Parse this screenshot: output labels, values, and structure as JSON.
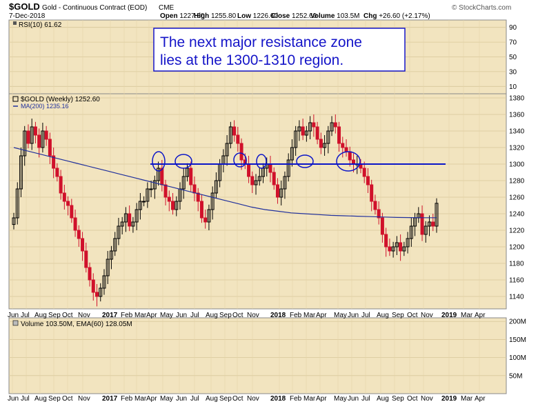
{
  "header": {
    "symbol": "$GOLD",
    "description": "Gold - Continuous Contract (EOD)",
    "exchange": "CME",
    "date": "7-Dec-2018",
    "watermark": "© StockCharts.com",
    "ohlc": [
      {
        "label": "Open",
        "value": "1227.80"
      },
      {
        "label": "High",
        "value": "1255.80"
      },
      {
        "label": "Low",
        "value": "1226.60"
      },
      {
        "label": "Close",
        "value": "1252.60"
      },
      {
        "label": "Volume",
        "value": "103.5M"
      },
      {
        "label": "Chg",
        "value": "+26.60 (+2.17%)"
      }
    ]
  },
  "annotation": {
    "line1": "The next major resistance zone",
    "line2": "lies at the 1300-1310 region."
  },
  "colors": {
    "up": "#000000",
    "down": "#d0112b",
    "ma": "#1f2f9c",
    "resistance": "#0a14c8",
    "panel_bg": "#f2e4bf",
    "annotation_text": "#1414c8"
  },
  "chart_data": [
    {
      "type": "line",
      "panel": "rsi",
      "legend": "RSI(10) 61.62",
      "ylim": [
        0,
        100
      ],
      "y_ticks": [
        "90",
        "70",
        "50",
        "30",
        "10"
      ],
      "y_tick_values": [
        90,
        70,
        50,
        30,
        10
      ]
    },
    {
      "type": "candlestick",
      "panel": "price",
      "legend": "$GOLD (Weekly) 1252.60",
      "ma_legend": "MA(200) 1235.16",
      "ylim": [
        1125,
        1385
      ],
      "y_ticks": [
        "1380",
        "1360",
        "1340",
        "1320",
        "1300",
        "1280",
        "1260",
        "1240",
        "1220",
        "1200",
        "1180",
        "1160",
        "1140"
      ],
      "y_tick_values": [
        1380,
        1360,
        1340,
        1320,
        1300,
        1280,
        1260,
        1240,
        1220,
        1200,
        1180,
        1160,
        1140
      ],
      "resistance_level": 1300,
      "x_labels": [
        "Jun",
        "Jul",
        "Aug",
        "Sep",
        "Oct",
        "Nov",
        "2017",
        "Feb",
        "Mar",
        "Apr",
        "May",
        "Jun",
        "Jul",
        "Aug",
        "Sep",
        "Oct",
        "Nov",
        "2018",
        "Feb",
        "Mar",
        "Apr",
        "May",
        "Jun",
        "Jul",
        "Aug",
        "Sep",
        "Oct",
        "Nov",
        "2019",
        "Mar",
        "Apr"
      ],
      "closes": [
        1235,
        1270,
        1310,
        1340,
        1325,
        1345,
        1335,
        1320,
        1340,
        1330,
        1310,
        1295,
        1285,
        1265,
        1255,
        1250,
        1235,
        1220,
        1210,
        1195,
        1175,
        1160,
        1145,
        1140,
        1150,
        1165,
        1185,
        1195,
        1210,
        1225,
        1230,
        1240,
        1225,
        1230,
        1245,
        1255,
        1255,
        1270,
        1270,
        1280,
        1295,
        1275,
        1260,
        1255,
        1245,
        1255,
        1270,
        1285,
        1295,
        1275,
        1265,
        1255,
        1235,
        1230,
        1245,
        1265,
        1280,
        1300,
        1310,
        1325,
        1345,
        1335,
        1325,
        1305,
        1300,
        1285,
        1275,
        1280,
        1285,
        1295,
        1300,
        1290,
        1275,
        1260,
        1270,
        1285,
        1305,
        1320,
        1340,
        1345,
        1335,
        1340,
        1350,
        1345,
        1330,
        1320,
        1325,
        1340,
        1350,
        1345,
        1325,
        1320,
        1315,
        1305,
        1300,
        1300,
        1295,
        1285,
        1275,
        1255,
        1245,
        1235,
        1215,
        1200,
        1195,
        1200,
        1205,
        1195,
        1200,
        1210,
        1225,
        1235,
        1240,
        1215,
        1225,
        1230,
        1225,
        1252.6
      ],
      "ma200": [
        1320,
        1316,
        1312,
        1308,
        1304,
        1300,
        1296,
        1292,
        1288,
        1284,
        1280,
        1276,
        1272,
        1268,
        1264,
        1260,
        1256,
        1252,
        1248,
        1245,
        1243,
        1241,
        1240,
        1239,
        1238,
        1237.5,
        1237,
        1236.5,
        1236,
        1235.5,
        1235.3,
        1235.2,
        1235.16
      ]
    },
    {
      "type": "bar",
      "panel": "volume",
      "legend": "Volume 103.50M, EMA(60) 128.05M",
      "y_ticks": [
        "200M",
        "150M",
        "100M",
        "50M"
      ],
      "y_tick_values": [
        200,
        150,
        100,
        50
      ]
    }
  ]
}
